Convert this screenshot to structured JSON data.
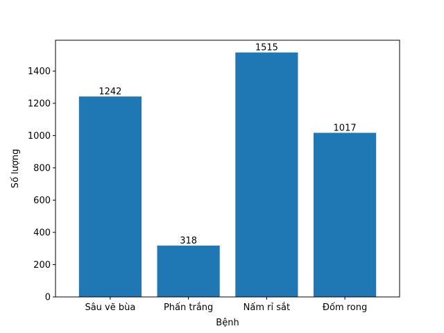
{
  "chart_data": {
    "type": "bar",
    "title": "",
    "xlabel": "Bệnh",
    "ylabel": "Số lượng",
    "categories": [
      "Sâu vẽ bùa",
      "Phấn trắng",
      "Nấm rỉ sắt",
      "Đốm rong"
    ],
    "values": [
      1242,
      318,
      1515,
      1017
    ],
    "data_labels": [
      "1242",
      "318",
      "1515",
      "1017"
    ],
    "yticks": [
      0,
      200,
      400,
      600,
      800,
      1000,
      1200,
      1400
    ],
    "ylim": [
      0,
      1590.75
    ],
    "grid": false,
    "legend": "none",
    "bar_color": "#1f77b4"
  }
}
